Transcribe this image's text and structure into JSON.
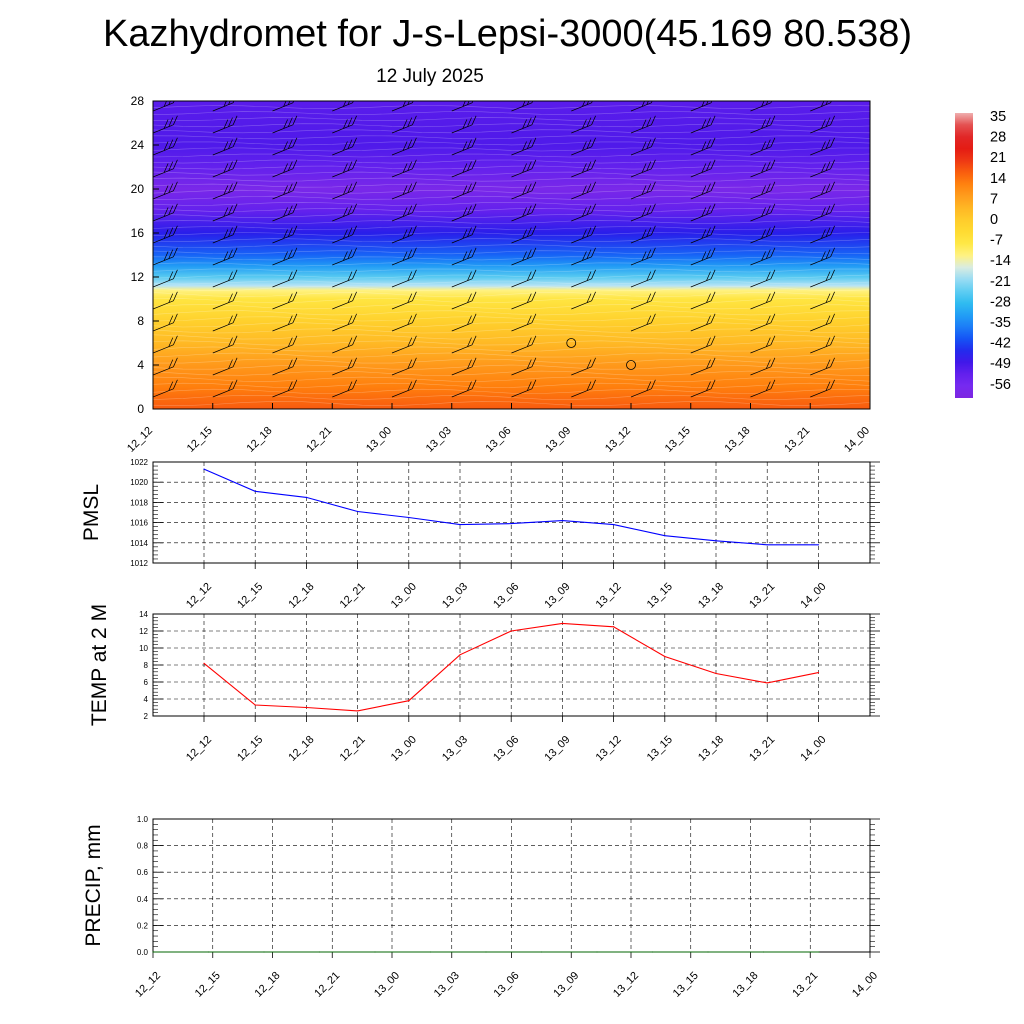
{
  "title": "Kazhydromet for J-s-Lepsi-3000(45.169 80.538)",
  "subtitle": "12 July 2025",
  "time_labels": [
    "12_12",
    "12_15",
    "12_18",
    "12_21",
    "13_00",
    "13_03",
    "13_06",
    "13_09",
    "13_12",
    "13_15",
    "13_18",
    "13_21",
    "14_00"
  ],
  "chart_data": [
    {
      "type": "heatmap",
      "title": "",
      "x": [
        "12_12",
        "12_15",
        "12_18",
        "12_21",
        "13_00",
        "13_03",
        "13_06",
        "13_09",
        "13_12",
        "13_15",
        "13_18",
        "13_21",
        "14_00"
      ],
      "y_ticks": [
        "0",
        "4",
        "8",
        "12",
        "16",
        "20",
        "24",
        "28"
      ],
      "ylim": [
        0,
        28
      ],
      "colorbar_labels": [
        "35",
        "28",
        "21",
        "14",
        "7",
        "0",
        "-7",
        "-14",
        "-21",
        "-28",
        "-35",
        "-42",
        "-49",
        "-56"
      ],
      "colorbar_range": [
        -60,
        38
      ],
      "profile": [
        {
          "z": 0,
          "t": 18
        },
        {
          "z": 2,
          "t": 14
        },
        {
          "z": 4,
          "t": 10
        },
        {
          "z": 6,
          "t": 5
        },
        {
          "z": 8,
          "t": 0
        },
        {
          "z": 10,
          "t": -6
        },
        {
          "z": 10.8,
          "t": -11
        },
        {
          "z": 11.2,
          "t": -17
        },
        {
          "z": 12,
          "t": -24
        },
        {
          "z": 13,
          "t": -32
        },
        {
          "z": 14,
          "t": -38
        },
        {
          "z": 16,
          "t": -45
        },
        {
          "z": 18,
          "t": -52
        },
        {
          "z": 20,
          "t": -58
        },
        {
          "z": 22,
          "t": -52
        },
        {
          "z": 24,
          "t": -49
        },
        {
          "z": 28,
          "t": -50
        }
      ],
      "wind_barbs": "black barbs at every time and level; calm circles near 13_09 at 6 km and 13_12 at 4 km",
      "calm": [
        {
          "x": "13_09",
          "z": 6
        },
        {
          "x": "13_12",
          "z": 4
        }
      ]
    },
    {
      "type": "line",
      "ylabel": "PMSL",
      "color": "#0000ff",
      "ylim": [
        1012,
        1022
      ],
      "y_ticks": [
        "1012",
        "1014",
        "1016",
        "1018",
        "1020",
        "1022"
      ],
      "x": [
        "12_12",
        "12_15",
        "12_18",
        "12_21",
        "13_00",
        "13_03",
        "13_06",
        "13_09",
        "13_12",
        "13_15",
        "13_18",
        "13_21",
        "14_00"
      ],
      "values": [
        1021.3,
        1019.1,
        1018.5,
        1017.1,
        1016.5,
        1015.8,
        1015.9,
        1016.2,
        1015.8,
        1014.7,
        1014.2,
        1013.8,
        1013.8
      ]
    },
    {
      "type": "line",
      "ylabel": "TEMP at 2 M",
      "color": "#ff0000",
      "ylim": [
        2,
        14
      ],
      "y_ticks": [
        "2",
        "4",
        "6",
        "8",
        "10",
        "12",
        "14"
      ],
      "x": [
        "12_12",
        "12_15",
        "12_18",
        "12_21",
        "13_00",
        "13_03",
        "13_06",
        "13_09",
        "13_12",
        "13_15",
        "13_18",
        "13_21",
        "14_00"
      ],
      "values": [
        8.2,
        3.3,
        3.0,
        2.6,
        3.8,
        9.2,
        12.0,
        12.9,
        12.5,
        9.0,
        7.0,
        5.9,
        7.1
      ]
    },
    {
      "type": "line",
      "ylabel": "PRECIP, mm",
      "color": "#006400",
      "ylim": [
        0,
        1
      ],
      "y_ticks": [
        "0.0",
        "0.2",
        "0.4",
        "0.6",
        "0.8",
        "1.0"
      ],
      "x": [
        "12_12",
        "12_15",
        "12_18",
        "12_21",
        "13_00",
        "13_03",
        "13_06",
        "13_09",
        "13_12",
        "13_15",
        "13_18",
        "13_21",
        "14_00"
      ],
      "values": [
        0,
        0,
        0,
        0,
        0,
        0,
        0,
        0,
        0,
        0,
        0,
        0,
        0
      ]
    }
  ]
}
